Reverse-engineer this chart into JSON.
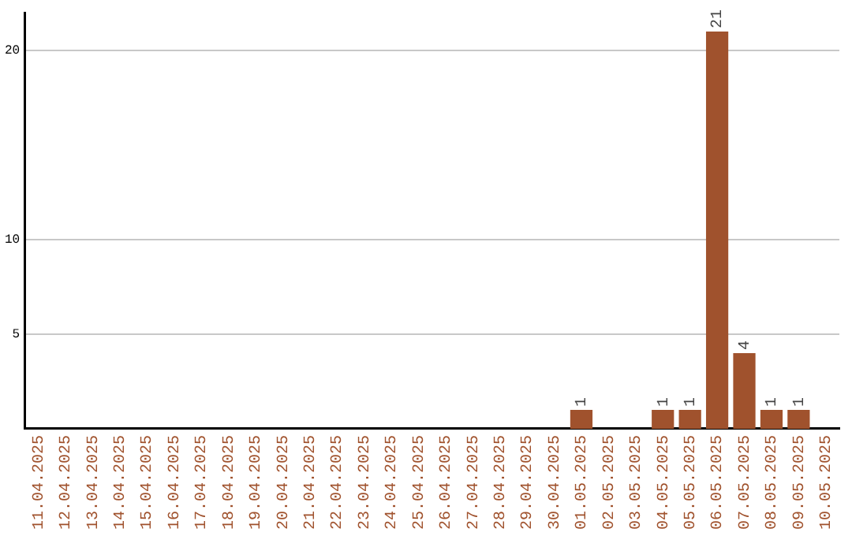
{
  "chart_data": {
    "type": "bar",
    "categories": [
      "11.04.2025",
      "12.04.2025",
      "13.04.2025",
      "14.04.2025",
      "15.04.2025",
      "16.04.2025",
      "17.04.2025",
      "18.04.2025",
      "19.04.2025",
      "20.04.2025",
      "21.04.2025",
      "22.04.2025",
      "23.04.2025",
      "24.04.2025",
      "25.04.2025",
      "26.04.2025",
      "27.04.2025",
      "28.04.2025",
      "29.04.2025",
      "30.04.2025",
      "01.05.2025",
      "02.05.2025",
      "03.05.2025",
      "04.05.2025",
      "05.05.2025",
      "06.05.2025",
      "07.05.2025",
      "08.05.2025",
      "09.05.2025",
      "10.05.2025"
    ],
    "values": [
      0,
      0,
      0,
      0,
      0,
      0,
      0,
      0,
      0,
      0,
      0,
      0,
      0,
      0,
      0,
      0,
      0,
      0,
      0,
      0,
      1,
      0,
      0,
      1,
      1,
      21,
      4,
      1,
      1,
      0
    ],
    "value_labels": [
      null,
      null,
      null,
      null,
      null,
      null,
      null,
      null,
      null,
      null,
      null,
      null,
      null,
      null,
      null,
      null,
      null,
      null,
      null,
      null,
      "1",
      null,
      null,
      "1",
      "1",
      "21",
      "4",
      "1",
      "1",
      null
    ],
    "color": "#a0522d",
    "ylim": [
      0,
      22
    ],
    "yticks": [
      5,
      10,
      20
    ],
    "grid": "y",
    "legend": false
  }
}
